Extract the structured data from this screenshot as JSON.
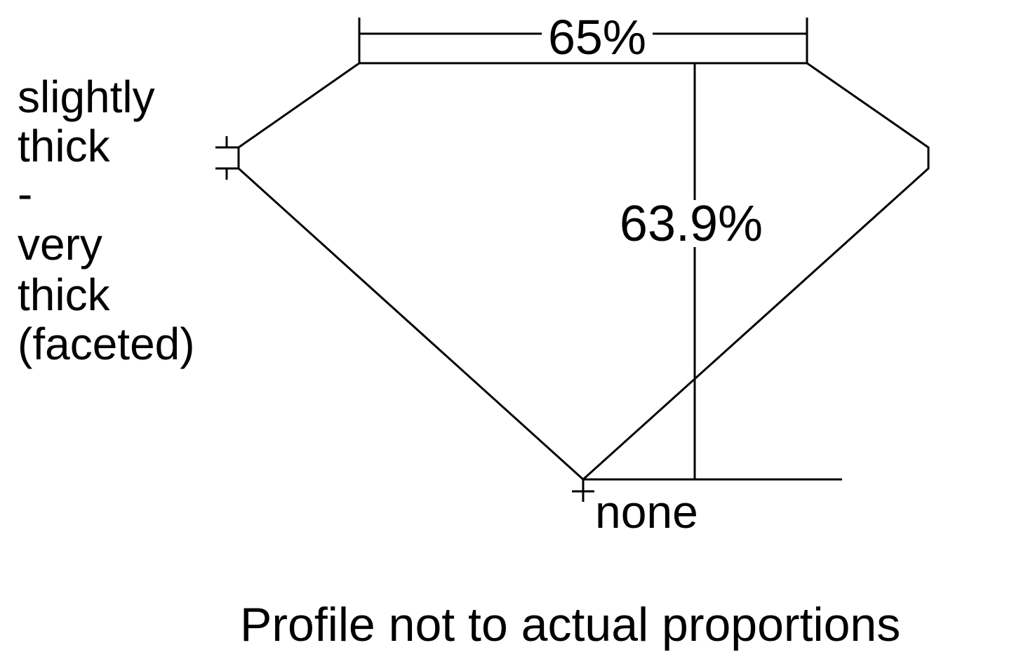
{
  "diagram": {
    "table_percent": "65%",
    "depth_percent": "63.9%",
    "girdle_label": [
      "slightly",
      "thick",
      "-",
      "very",
      "thick",
      "(faceted)"
    ],
    "culet_label": "none",
    "footnote": "Profile not to actual proportions",
    "line_color": "#000000"
  }
}
